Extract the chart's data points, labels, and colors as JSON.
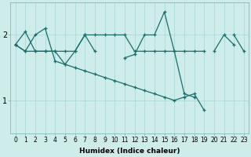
{
  "xlabel": "Humidex (Indice chaleur)",
  "background_color": "#cdecea",
  "line_color": "#1a6e6a",
  "x_values": [
    0,
    1,
    2,
    3,
    4,
    5,
    6,
    7,
    8,
    9,
    10,
    11,
    12,
    13,
    14,
    15,
    16,
    17,
    18,
    19,
    20,
    21,
    22,
    23
  ],
  "series": [
    {
      "y": [
        1.85,
        2.05,
        1.75,
        1.75,
        1.75,
        1.75,
        1.75,
        2.0,
        2.0,
        2.0,
        2.0,
        2.0,
        1.75,
        1.75,
        1.75,
        1.75,
        1.75,
        1.75,
        1.75,
        1.75,
        null,
        null,
        2.0,
        1.75
      ]
    },
    {
      "y": [
        1.85,
        1.75,
        2.0,
        2.1,
        1.6,
        1.55,
        1.75,
        2.0,
        1.75,
        null,
        null,
        1.65,
        1.7,
        2.0,
        2.0,
        2.35,
        1.75,
        1.1,
        1.05,
        null,
        1.75,
        2.0,
        1.85,
        null
      ]
    },
    {
      "y": [
        1.85,
        1.75,
        1.75,
        1.75,
        1.75,
        1.55,
        1.5,
        1.45,
        1.4,
        1.35,
        1.3,
        1.25,
        1.2,
        1.15,
        1.1,
        1.05,
        1.0,
        1.05,
        1.1,
        0.85,
        null,
        null,
        null,
        null
      ]
    }
  ],
  "ylim": [
    0.5,
    2.5
  ],
  "yticks": [
    1,
    2
  ],
  "xlim": [
    -0.5,
    23.5
  ],
  "xticks": [
    0,
    1,
    2,
    3,
    4,
    5,
    6,
    7,
    8,
    9,
    10,
    11,
    12,
    13,
    14,
    15,
    16,
    17,
    18,
    19,
    20,
    21,
    22,
    23
  ],
  "tick_fontsize": 5.5,
  "xlabel_fontsize": 6.5
}
